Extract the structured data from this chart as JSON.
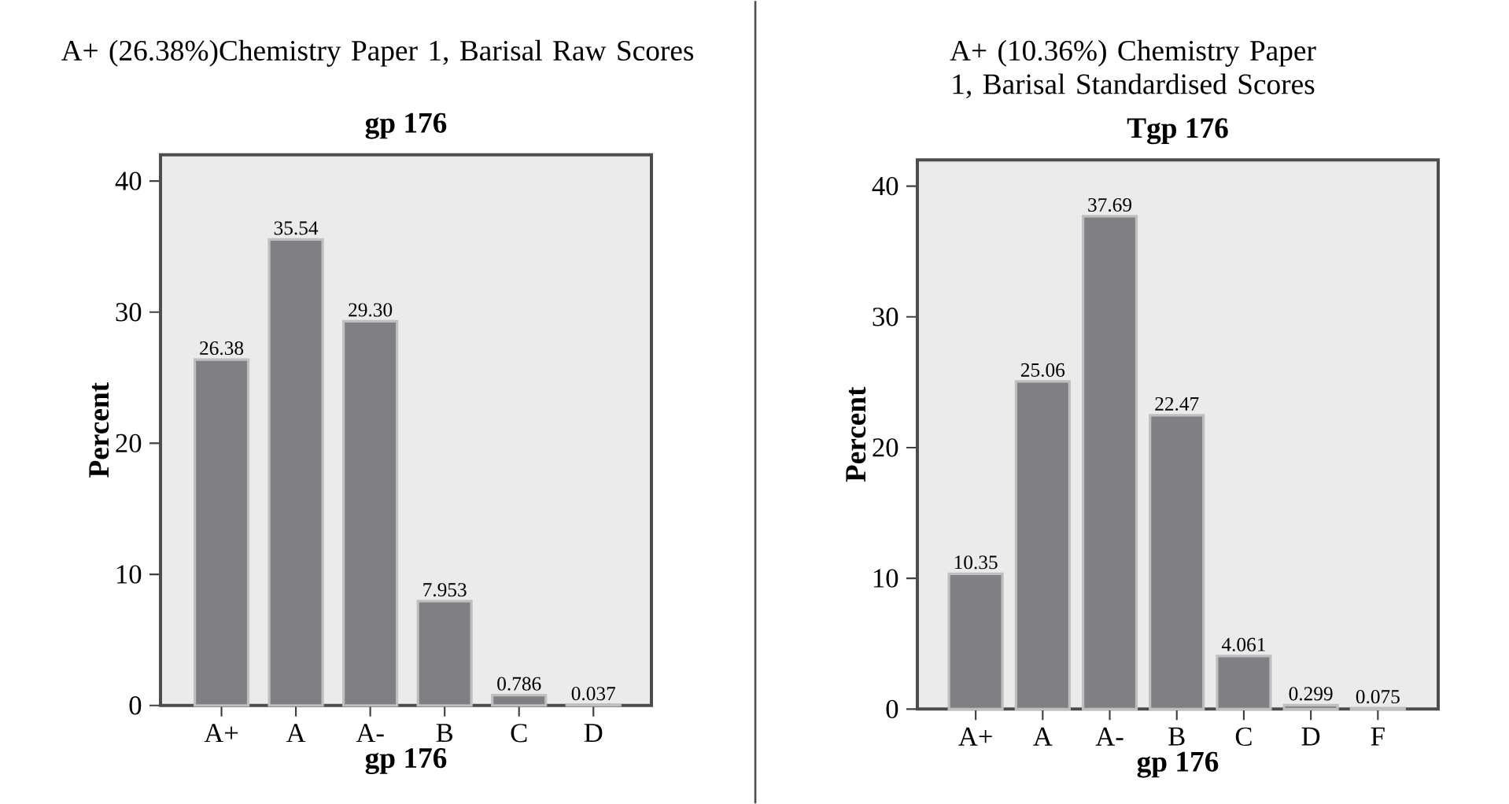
{
  "chart_data": [
    {
      "type": "bar",
      "title": "A+ (26.38%)Chemistry Paper 1, Barisal Raw Scores",
      "subtitle": "gp 176",
      "xlabel": "gp 176",
      "ylabel": "Percent",
      "categories": [
        "A+",
        "A",
        "A-",
        "B",
        "C",
        "D"
      ],
      "values": [
        26.38,
        35.54,
        29.3,
        7.953,
        0.786,
        0.037
      ],
      "value_labels": [
        "26.38",
        "35.54",
        "29.30",
        "7.953",
        "0.786",
        "0.037"
      ],
      "color": "#808084",
      "ylim": [
        0,
        42
      ],
      "yticks": [
        0,
        10,
        20,
        30,
        40
      ]
    },
    {
      "type": "bar",
      "title": "A+ (10.36%) Chemistry Paper 1, Barisal Standardised Scores",
      "subtitle": "Tgp 176",
      "xlabel": "gp 176",
      "ylabel": "Percent",
      "categories": [
        "A+",
        "A",
        "A-",
        "B",
        "C",
        "D",
        "F"
      ],
      "values": [
        10.35,
        25.06,
        37.69,
        22.47,
        4.061,
        0.299,
        0.075
      ],
      "value_labels": [
        "10.35",
        "25.06",
        "37.69",
        "22.47",
        "4.061",
        "0.299",
        "0.075"
      ],
      "color": "#808084",
      "ylim": [
        0,
        42
      ],
      "yticks": [
        0,
        10,
        20,
        30,
        40
      ]
    }
  ]
}
